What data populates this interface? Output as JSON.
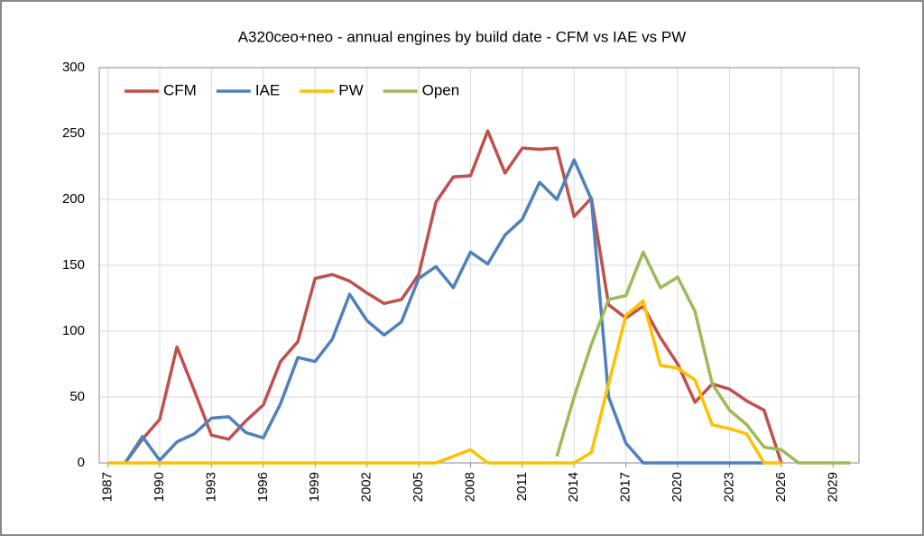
{
  "chart_data": {
    "type": "line",
    "title": "A320ceo+neo - annual engines by build date - CFM vs IAE vs PW",
    "x": [
      1987,
      1988,
      1989,
      1990,
      1991,
      1992,
      1993,
      1994,
      1995,
      1996,
      1997,
      1998,
      1999,
      2000,
      2001,
      2002,
      2003,
      2004,
      2005,
      2006,
      2007,
      2008,
      2009,
      2010,
      2011,
      2012,
      2013,
      2014,
      2015,
      2016,
      2017,
      2018,
      2019,
      2020,
      2021,
      2022,
      2023,
      2024,
      2025,
      2026,
      2027,
      2028,
      2029,
      2030
    ],
    "series": [
      {
        "name": "CFM",
        "color": "#c0504d",
        "values": [
          null,
          0,
          18,
          33,
          88,
          55,
          21,
          18,
          32,
          44,
          77,
          92,
          140,
          143,
          138,
          129,
          121,
          124,
          143,
          198,
          217,
          218,
          252,
          220,
          239,
          238,
          239,
          187,
          201,
          120,
          110,
          119,
          95,
          75,
          46,
          60,
          56,
          47,
          40,
          0,
          null,
          null,
          null,
          null
        ]
      },
      {
        "name": "IAE",
        "color": "#4f81bd",
        "values": [
          null,
          0,
          20,
          2,
          16,
          22,
          34,
          35,
          23,
          19,
          45,
          80,
          77,
          94,
          128,
          108,
          97,
          107,
          140,
          149,
          133,
          160,
          151,
          173,
          185,
          213,
          200,
          230,
          200,
          50,
          15,
          0,
          0,
          0,
          0,
          0,
          0,
          0,
          0,
          null,
          null,
          null,
          null,
          null
        ]
      },
      {
        "name": "PW",
        "color": "#ffc000",
        "values": [
          0,
          0,
          0,
          0,
          0,
          0,
          0,
          0,
          0,
          0,
          0,
          0,
          0,
          0,
          0,
          0,
          0,
          0,
          0,
          0,
          5,
          10,
          0,
          0,
          0,
          0,
          0,
          0,
          8,
          60,
          112,
          123,
          74,
          72,
          63,
          29,
          26,
          22,
          0,
          0,
          null,
          null,
          null,
          null
        ]
      },
      {
        "name": "Open",
        "color": "#9bbb59",
        "values": [
          null,
          null,
          null,
          null,
          null,
          null,
          null,
          null,
          null,
          null,
          null,
          null,
          null,
          null,
          null,
          null,
          null,
          null,
          null,
          null,
          null,
          null,
          null,
          null,
          null,
          null,
          5,
          50,
          90,
          124,
          127,
          160,
          133,
          141,
          115,
          60,
          40,
          29,
          12,
          10,
          0,
          0,
          0,
          0
        ]
      }
    ],
    "xlim": [
      1986.5,
      2030.5
    ],
    "xticks": [
      1987,
      1990,
      1993,
      1996,
      1999,
      2002,
      2005,
      2008,
      2011,
      2014,
      2017,
      2020,
      2023,
      2026,
      2029
    ],
    "ylim": [
      0,
      300
    ],
    "yticks": [
      0,
      50,
      100,
      150,
      200,
      250,
      300
    ],
    "grid": true,
    "legend": "top-left"
  }
}
